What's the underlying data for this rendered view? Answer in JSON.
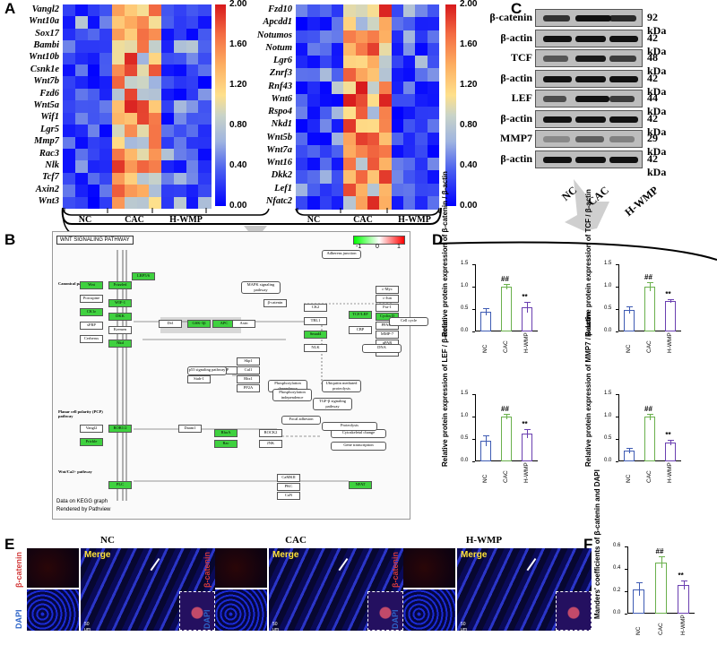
{
  "panels": {
    "A": "A",
    "B": "B",
    "C": "C",
    "D": "D",
    "E": "E",
    "F": "F"
  },
  "heatmap_left": {
    "genes": [
      "Vangl2",
      "Wnt10a",
      "Sox17",
      "Bambi",
      "Wnt10b",
      "Csnk1e",
      "Wnt7b",
      "Fzd6",
      "Wnt5a",
      "Wif1",
      "Lgr5",
      "Mmp7",
      "Rac3",
      "Nlk",
      "Tcf7",
      "Axin2",
      "Wnt3"
    ],
    "colorbar_ticks": [
      "2.00",
      "1.60",
      "1.20",
      "0.80",
      "0.40",
      "0.00"
    ],
    "groups": [
      "NC",
      "CAC",
      "H-WMP"
    ]
  },
  "heatmap_right": {
    "genes": [
      "Fzd10",
      "Apcdd1",
      "Notumos",
      "Notum",
      "Lgr6",
      "Znrf3",
      "Rnf43",
      "Wnt6",
      "Rspo4",
      "Nkd1",
      "Wnt5b",
      "Wnt7a",
      "Wnt16",
      "Dkk2",
      "Lef1",
      "Nfatc2"
    ],
    "colorbar_ticks": [
      "2.00",
      "1.60",
      "1.20",
      "0.80",
      "0.40",
      "0.00"
    ],
    "groups": [
      "NC",
      "CAC",
      "H-WMP"
    ]
  },
  "western_blot": {
    "rows": [
      {
        "label": "β-catenin",
        "kda": "92 kDa"
      },
      {
        "label": "β-actin",
        "kda": "42 kDa"
      },
      {
        "label": "TCF",
        "kda": "48 kDa"
      },
      {
        "label": "β-actin",
        "kda": "42 kDa"
      },
      {
        "label": "LEF",
        "kda": "44 kDa"
      },
      {
        "label": "β-actin",
        "kda": "42 kDa"
      },
      {
        "label": "MMP7",
        "kda": "29 kDa"
      },
      {
        "label": "β-actin",
        "kda": "42 kDa"
      }
    ],
    "lanes": [
      "NC",
      "CAC",
      "H-WMP"
    ]
  },
  "kegg": {
    "title": "WNT SIGNALING PATHWAY",
    "legend_ticks": [
      "-1",
      "0",
      "1"
    ],
    "footer1": "Data on KEGG graph",
    "footer2": "Rendered by Pathview",
    "sections": [
      "Canonical pathway",
      "Planar cell polarity (PCP) pathway",
      "Wnt/Ca2+ pathway"
    ],
    "nodes": [
      "Wnt",
      "Frizzled",
      "LRP5/6",
      "Dvl",
      "GSK-3β",
      "APC",
      "Axin",
      "β-catenin",
      "TCF/LEF",
      "CBP",
      "c-Myc",
      "c-Jun",
      "Fra-1",
      "Cyclin D",
      "PPARδ",
      "MMP-7",
      "uPAR",
      "CD44",
      "Daam1",
      "RhoA",
      "ROCK2",
      "Rac",
      "JNK",
      "CaMKII",
      "PKC",
      "CaN",
      "NFAT",
      "Porcupine",
      "CK1ε",
      "sFRP",
      "Cerberus",
      "WIF-1",
      "DKK",
      "Kremen",
      "Nkd",
      "Siah-1",
      "SIP",
      "Skp1",
      "Cul1",
      "Rbx1",
      "PP2A",
      "CK2",
      "TBL1",
      "Smad4",
      "NLK",
      "ROR1/2",
      "PLC",
      "Vangl2",
      "Prickle"
    ],
    "notes": [
      "Adherens junction",
      "MAPK signaling pathway",
      "Ubiquitin mediated proteolysis",
      "p53 signaling pathway",
      "Focal adhesion",
      "TGF-β signaling pathway",
      "Cytoskeletal change",
      "Gene transcription",
      "Proteolysis",
      "Phosphorylation dependence",
      "Phosphorylation independence",
      "Cell cycle",
      "DNA"
    ]
  },
  "chart_data": [
    {
      "type": "bar",
      "categories": [
        "NC",
        "CAC",
        "H-WMP"
      ],
      "values": [
        0.45,
        1.0,
        0.55
      ],
      "errors": [
        0.08,
        0.06,
        0.12
      ],
      "ylabel": "Relative protein expression of β-catenin / β-actin",
      "ylim": [
        0,
        1.5
      ],
      "yticks": [
        "0.0",
        "0.5",
        "1.0",
        "1.5"
      ],
      "significance": [
        "",
        "##",
        "**"
      ]
    },
    {
      "type": "bar",
      "categories": [
        "NC",
        "CAC",
        "H-WMP"
      ],
      "values": [
        0.48,
        1.0,
        0.68
      ],
      "errors": [
        0.08,
        0.1,
        0.04
      ],
      "ylabel": "Relative protein expression of TCF / β-actin",
      "ylim": [
        0,
        1.5
      ],
      "yticks": [
        "0.0",
        "0.5",
        "1.0",
        "1.5"
      ],
      "significance": [
        "",
        "##",
        "**"
      ]
    },
    {
      "type": "bar",
      "categories": [
        "NC",
        "CAC",
        "H-WMP"
      ],
      "values": [
        0.47,
        1.0,
        0.63
      ],
      "errors": [
        0.12,
        0.06,
        0.1
      ],
      "ylabel": "Relative protein expression of LEF / β-actin",
      "ylim": [
        0,
        1.5
      ],
      "yticks": [
        "0.0",
        "0.5",
        "1.0",
        "1.5"
      ],
      "significance": [
        "",
        "##",
        "**"
      ]
    },
    {
      "type": "bar",
      "categories": [
        "NC",
        "CAC",
        "H-WMP"
      ],
      "values": [
        0.25,
        1.0,
        0.42
      ],
      "errors": [
        0.06,
        0.07,
        0.06
      ],
      "ylabel": "Relative protein expression of MMP7 / β-actin",
      "ylim": [
        0,
        1.5
      ],
      "yticks": [
        "0.0",
        "0.5",
        "1.0",
        "1.5"
      ],
      "significance": [
        "",
        "##",
        "**"
      ]
    },
    {
      "type": "bar",
      "categories": [
        "NC",
        "CAC",
        "H-WMP"
      ],
      "values": [
        0.22,
        0.46,
        0.26
      ],
      "errors": [
        0.06,
        0.05,
        0.04
      ],
      "ylabel": "Manders' coefficients of β-catenin and DAPI",
      "ylim": [
        0,
        0.6
      ],
      "yticks": [
        "0.0",
        "0.2",
        "0.4",
        "0.6"
      ],
      "significance": [
        "",
        "##",
        "**"
      ]
    }
  ],
  "immuno": {
    "groups": [
      "NC",
      "CAC",
      "H-WMP"
    ],
    "stain1": "β-catenin",
    "stain2": "DAPI",
    "merge": "Merge",
    "scale": "50 μm"
  }
}
